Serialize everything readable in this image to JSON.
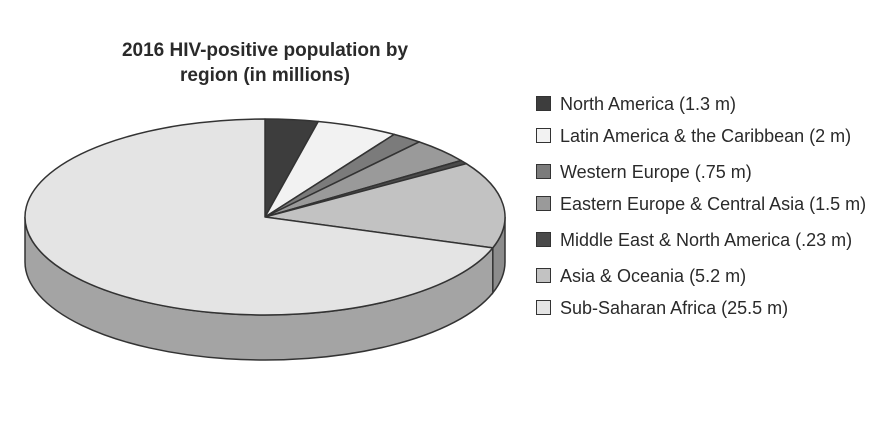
{
  "chart_data": {
    "type": "pie",
    "style": "3d",
    "title_lines": [
      "2016 HIV-positive population by",
      "region (in millions)"
    ],
    "unit": "millions",
    "slices": [
      {
        "label": "North America",
        "value": 1.3,
        "legend_text": "North America (1.3 m)",
        "color": "#3d3d3d"
      },
      {
        "label": "Latin America & the Caribbean",
        "value": 2,
        "legend_text": "Latin America & the Caribbean (2 m)",
        "color": "#f2f2f2"
      },
      {
        "label": "Western Europe",
        "value": 0.75,
        "legend_text": "Western Europe (.75 m)",
        "color": "#7b7b7b"
      },
      {
        "label": "Eastern Europe & Central Asia",
        "value": 1.5,
        "legend_text": "Eastern Europe & Central Asia (1.5 m)",
        "color": "#9a9a9a"
      },
      {
        "label": "Middle East & North America",
        "value": 0.23,
        "legend_text": "Middle East & North America (.23 m)",
        "color": "#4a4a4a"
      },
      {
        "label": "Asia & Oceania",
        "value": 5.2,
        "legend_text": "Asia & Oceania (5.2 m)",
        "color": "#c2c2c2"
      },
      {
        "label": "Sub-Saharan Africa",
        "value": 25.5,
        "legend_text": "Sub-Saharan Africa (25.5 m)",
        "color": "#e4e4e4"
      }
    ],
    "legend_position": "right"
  }
}
